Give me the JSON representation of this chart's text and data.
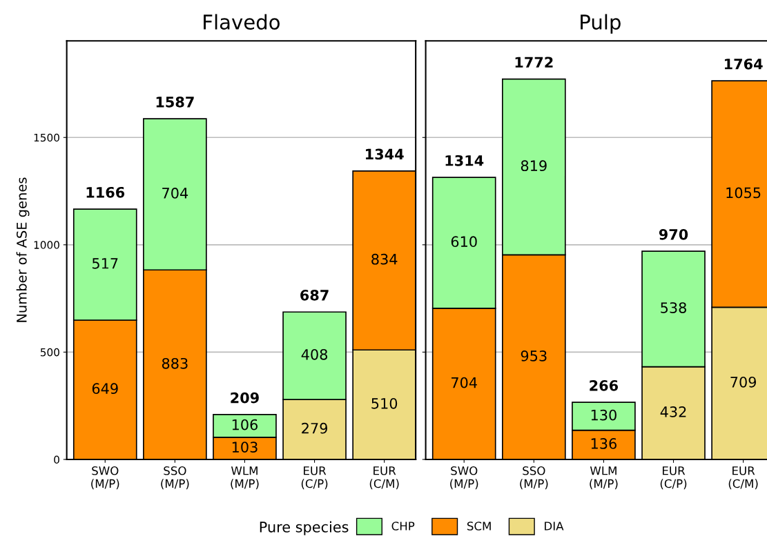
{
  "chart_data": [
    {
      "type": "bar",
      "title": "Flavedo",
      "ylabel": "Number of ASE genes",
      "stacked": true,
      "data_labels": true,
      "grid": "y",
      "legend": "bottom",
      "legend_title": "Pure species",
      "categories": [
        "SWO\n(M/P)",
        "SSO\n(M/P)",
        "WLM\n(M/P)",
        "EUR\n(C/P)",
        "EUR\n(C/M)"
      ],
      "ylim": [
        0,
        1950
      ],
      "yticks": [
        0,
        500,
        1000,
        1500
      ],
      "series": [
        {
          "name": "DIA",
          "color": "#eedc82",
          "values": [
            null,
            null,
            null,
            279,
            510
          ]
        },
        {
          "name": "SCM",
          "color": "#ff8c00",
          "values": [
            649,
            883,
            103,
            null,
            834
          ]
        },
        {
          "name": "CHP",
          "color": "#98fb98",
          "values": [
            517,
            704,
            106,
            408,
            null
          ]
        }
      ],
      "totals": [
        "1166",
        "1587",
        "209",
        "687",
        "1344"
      ]
    },
    {
      "type": "bar",
      "title": "Pulp",
      "stacked": true,
      "data_labels": true,
      "grid": "y",
      "tick_labels": "x",
      "categories": [
        "SWO\n(M/P)",
        "SSO\n(M/P)",
        "WLM\n(M/P)",
        "EUR\n(C/P)",
        "EUR\n(C/M)"
      ],
      "ylim": [
        0,
        1950
      ],
      "yticks": [
        0,
        500,
        1000,
        1500
      ],
      "series": [
        {
          "color": "#eedc82",
          "values": [
            null,
            null,
            null,
            432,
            709
          ]
        },
        {
          "color": "#ff8c00",
          "values": [
            704,
            953,
            136,
            null,
            1055
          ]
        },
        {
          "color": "#98fb98",
          "values": [
            610,
            819,
            130,
            538,
            null
          ]
        }
      ],
      "totals": [
        "1314",
        "1772",
        "266",
        "970",
        "1764"
      ]
    }
  ]
}
